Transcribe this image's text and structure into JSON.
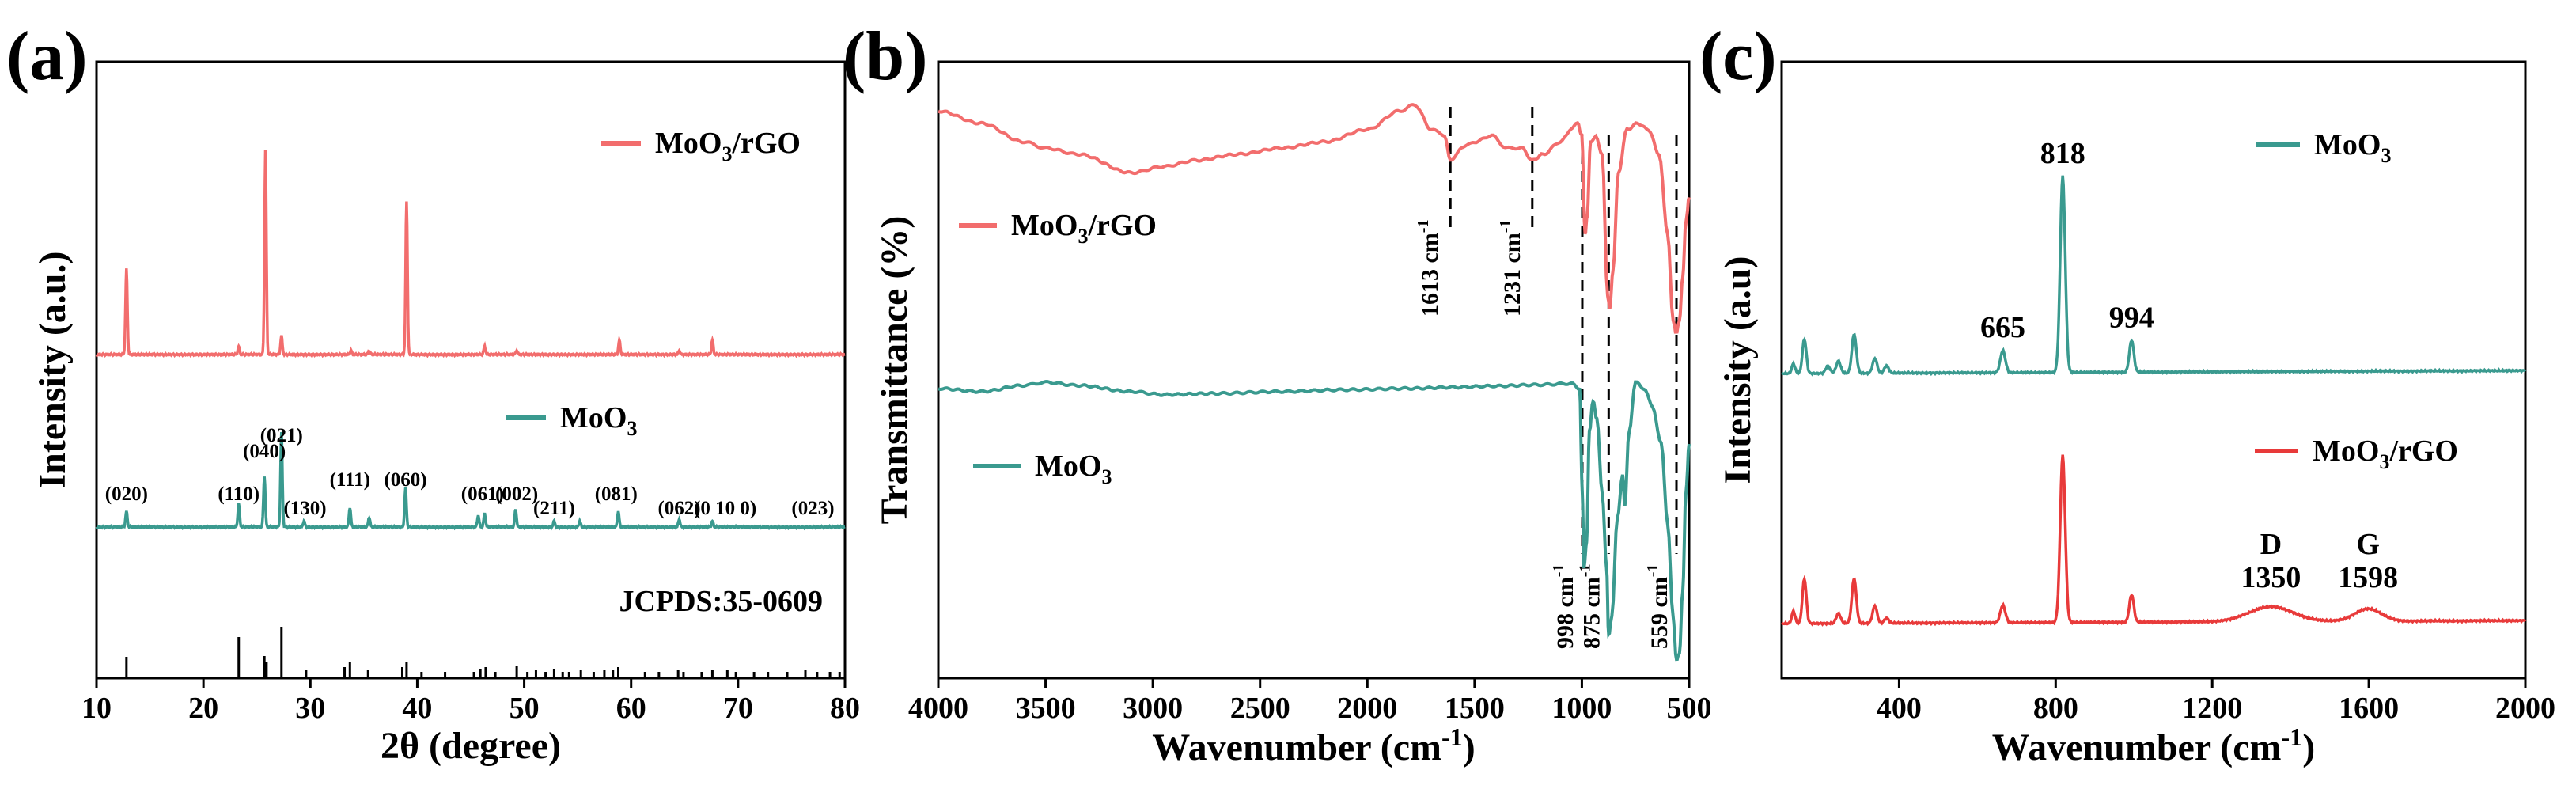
{
  "chart_data": [
    {
      "type": "line",
      "panel": "(a)",
      "xlabel": "2θ (degree)",
      "ylabel": "Intensity (a.u.)",
      "xlim": [
        10,
        80
      ],
      "xticks": [
        10,
        20,
        30,
        40,
        50,
        60,
        70,
        80
      ],
      "colors": {
        "MoO3/rGO": "#f26d6d",
        "MoO3": "#3a9a8f"
      },
      "series": [
        {
          "name": "MoO3/rGO",
          "label_main": "MoO",
          "label_sub": "3",
          "label_tail": "/rGO",
          "baseline": 1.0,
          "peaks": [
            {
              "x": 12.8,
              "h": 0.42
            },
            {
              "x": 23.3,
              "h": 0.04
            },
            {
              "x": 25.8,
              "h": 1.0
            },
            {
              "x": 27.3,
              "h": 0.09
            },
            {
              "x": 33.8,
              "h": 0.02
            },
            {
              "x": 35.5,
              "h": 0.02
            },
            {
              "x": 39.0,
              "h": 0.75
            },
            {
              "x": 46.3,
              "h": 0.04
            },
            {
              "x": 49.3,
              "h": 0.02
            },
            {
              "x": 58.9,
              "h": 0.07
            },
            {
              "x": 64.5,
              "h": 0.02
            },
            {
              "x": 67.6,
              "h": 0.07
            }
          ]
        },
        {
          "name": "MoO3",
          "label_main": "MoO",
          "label_sub": "3",
          "label_tail": "",
          "baseline": 0.0,
          "peaks": [
            {
              "x": 12.8,
              "h": 0.08
            },
            {
              "x": 23.3,
              "h": 0.12
            },
            {
              "x": 25.7,
              "h": 0.26
            },
            {
              "x": 27.3,
              "h": 0.48
            },
            {
              "x": 29.4,
              "h": 0.03
            },
            {
              "x": 33.7,
              "h": 0.1
            },
            {
              "x": 35.5,
              "h": 0.05
            },
            {
              "x": 38.9,
              "h": 0.2
            },
            {
              "x": 45.7,
              "h": 0.06
            },
            {
              "x": 46.3,
              "h": 0.07
            },
            {
              "x": 49.2,
              "h": 0.09
            },
            {
              "x": 52.8,
              "h": 0.03
            },
            {
              "x": 55.2,
              "h": 0.03
            },
            {
              "x": 58.8,
              "h": 0.08
            },
            {
              "x": 64.5,
              "h": 0.04
            },
            {
              "x": 67.6,
              "h": 0.03
            }
          ]
        }
      ],
      "hkl_labels": [
        {
          "text": "(020)",
          "x": 12.8,
          "row": 0
        },
        {
          "text": "(110)",
          "x": 23.3,
          "row": 0
        },
        {
          "text": "(040)",
          "x": 25.7,
          "row": 2
        },
        {
          "text": "(021)",
          "x": 27.3,
          "row": 3
        },
        {
          "text": "(130)",
          "x": 29.5,
          "row": -1
        },
        {
          "text": "(111)",
          "x": 33.7,
          "row": 1
        },
        {
          "text": "(060)",
          "x": 38.9,
          "row": 1
        },
        {
          "text": "(061)",
          "x": 46.1,
          "row": 0
        },
        {
          "text": "(002)",
          "x": 49.3,
          "row": 0
        },
        {
          "text": "(211)",
          "x": 52.8,
          "row": -1
        },
        {
          "text": "(081)",
          "x": 58.6,
          "row": 0
        },
        {
          "text": "(062)",
          "x": 64.5,
          "row": -1
        },
        {
          "text": "(0 10 0)",
          "x": 68.8,
          "row": -1
        },
        {
          "text": "(023)",
          "x": 77.0,
          "row": -1
        }
      ],
      "reference": {
        "label": "JCPDS:35-0609",
        "lines": [
          {
            "x": 12.8,
            "h": 0.27
          },
          {
            "x": 23.3,
            "h": 0.52
          },
          {
            "x": 25.7,
            "h": 0.28
          },
          {
            "x": 25.9,
            "h": 0.2
          },
          {
            "x": 27.3,
            "h": 0.65
          },
          {
            "x": 29.6,
            "h": 0.1
          },
          {
            "x": 33.2,
            "h": 0.14
          },
          {
            "x": 33.7,
            "h": 0.2
          },
          {
            "x": 35.4,
            "h": 0.1
          },
          {
            "x": 38.6,
            "h": 0.14
          },
          {
            "x": 39.0,
            "h": 0.2
          },
          {
            "x": 40.4,
            "h": 0.08
          },
          {
            "x": 42.6,
            "h": 0.08
          },
          {
            "x": 45.3,
            "h": 0.08
          },
          {
            "x": 45.9,
            "h": 0.12
          },
          {
            "x": 46.4,
            "h": 0.14
          },
          {
            "x": 47.3,
            "h": 0.08
          },
          {
            "x": 49.3,
            "h": 0.16
          },
          {
            "x": 50.3,
            "h": 0.08
          },
          {
            "x": 51.1,
            "h": 0.1
          },
          {
            "x": 52.0,
            "h": 0.08
          },
          {
            "x": 52.8,
            "h": 0.12
          },
          {
            "x": 53.6,
            "h": 0.08
          },
          {
            "x": 54.2,
            "h": 0.08
          },
          {
            "x": 55.3,
            "h": 0.1
          },
          {
            "x": 56.5,
            "h": 0.08
          },
          {
            "x": 57.5,
            "h": 0.1
          },
          {
            "x": 58.3,
            "h": 0.1
          },
          {
            "x": 58.8,
            "h": 0.14
          },
          {
            "x": 61.3,
            "h": 0.08
          },
          {
            "x": 62.6,
            "h": 0.08
          },
          {
            "x": 64.4,
            "h": 0.1
          },
          {
            "x": 64.9,
            "h": 0.08
          },
          {
            "x": 66.6,
            "h": 0.08
          },
          {
            "x": 67.6,
            "h": 0.1
          },
          {
            "x": 69.0,
            "h": 0.1
          },
          {
            "x": 69.8,
            "h": 0.08
          },
          {
            "x": 71.5,
            "h": 0.08
          },
          {
            "x": 72.8,
            "h": 0.08
          },
          {
            "x": 74.6,
            "h": 0.08
          },
          {
            "x": 76.3,
            "h": 0.1
          },
          {
            "x": 77.4,
            "h": 0.08
          },
          {
            "x": 78.6,
            "h": 0.08
          },
          {
            "x": 79.5,
            "h": 0.08
          }
        ]
      }
    },
    {
      "type": "line",
      "panel": "(b)",
      "xlabel_main": "Wavenumber (cm",
      "xlabel_sup": "-1",
      "xlabel_tail": ")",
      "ylabel": "Transmittance (%)",
      "xlim": [
        4000,
        500
      ],
      "xticks": [
        4000,
        3500,
        3000,
        2500,
        2000,
        1500,
        1000,
        500
      ],
      "colors": {
        "MoO3/rGO": "#f26d6d",
        "MoO3": "#3a9a8f"
      },
      "series": [
        {
          "name": "MoO3/rGO",
          "label_main": "MoO",
          "label_sub": "3",
          "label_tail": "/rGO",
          "points": [
            [
              4000,
              0.92
            ],
            [
              3800,
              0.9
            ],
            [
              3600,
              0.87
            ],
            [
              3500,
              0.86
            ],
            [
              3350,
              0.85
            ],
            [
              3100,
              0.82
            ],
            [
              2950,
              0.83
            ],
            [
              2800,
              0.84
            ],
            [
              2600,
              0.85
            ],
            [
              2400,
              0.86
            ],
            [
              2200,
              0.87
            ],
            [
              2000,
              0.89
            ],
            [
              1850,
              0.92
            ],
            [
              1780,
              0.93
            ],
            [
              1700,
              0.89
            ],
            [
              1640,
              0.88
            ],
            [
              1613,
              0.84
            ],
            [
              1560,
              0.86
            ],
            [
              1500,
              0.87
            ],
            [
              1420,
              0.88
            ],
            [
              1350,
              0.86
            ],
            [
              1280,
              0.86
            ],
            [
              1231,
              0.84
            ],
            [
              1180,
              0.85
            ],
            [
              1100,
              0.87
            ],
            [
              1050,
              0.89
            ],
            [
              1020,
              0.9
            ],
            [
              1000,
              0.88
            ],
            [
              985,
              0.72
            ],
            [
              975,
              0.75
            ],
            [
              960,
              0.87
            ],
            [
              935,
              0.88
            ],
            [
              905,
              0.85
            ],
            [
              880,
              0.62
            ],
            [
              870,
              0.6
            ],
            [
              855,
              0.66
            ],
            [
              830,
              0.82
            ],
            [
              790,
              0.89
            ],
            [
              740,
              0.9
            ],
            [
              690,
              0.89
            ],
            [
              640,
              0.85
            ],
            [
              600,
              0.72
            ],
            [
              575,
              0.58
            ],
            [
              560,
              0.56
            ],
            [
              545,
              0.58
            ],
            [
              530,
              0.65
            ],
            [
              515,
              0.74
            ],
            [
              500,
              0.78
            ]
          ]
        },
        {
          "name": "MoO3",
          "label_main": "MoO",
          "label_sub": "3",
          "label_tail": "",
          "points": [
            [
              4000,
              0.47
            ],
            [
              3800,
              0.465
            ],
            [
              3600,
              0.475
            ],
            [
              3500,
              0.48
            ],
            [
              3350,
              0.475
            ],
            [
              3100,
              0.465
            ],
            [
              2950,
              0.46
            ],
            [
              2700,
              0.462
            ],
            [
              2400,
              0.465
            ],
            [
              2100,
              0.468
            ],
            [
              1800,
              0.47
            ],
            [
              1600,
              0.472
            ],
            [
              1400,
              0.474
            ],
            [
              1200,
              0.476
            ],
            [
              1050,
              0.478
            ],
            [
              1010,
              0.47
            ],
            [
              998,
              0.3
            ],
            [
              990,
              0.18
            ],
            [
              978,
              0.22
            ],
            [
              965,
              0.4
            ],
            [
              948,
              0.45
            ],
            [
              930,
              0.42
            ],
            [
              905,
              0.3
            ],
            [
              885,
              0.18
            ],
            [
              875,
              0.07
            ],
            [
              860,
              0.1
            ],
            [
              835,
              0.26
            ],
            [
              810,
              0.33
            ],
            [
              800,
              0.28
            ],
            [
              780,
              0.4
            ],
            [
              750,
              0.48
            ],
            [
              710,
              0.47
            ],
            [
              670,
              0.44
            ],
            [
              630,
              0.38
            ],
            [
              600,
              0.25
            ],
            [
              575,
              0.1
            ],
            [
              559,
              0.03
            ],
            [
              545,
              0.04
            ],
            [
              530,
              0.14
            ],
            [
              515,
              0.3
            ],
            [
              500,
              0.38
            ]
          ]
        }
      ],
      "markers": [
        {
          "x": 1613,
          "label": "1613 cm",
          "sup": "-1",
          "pos": "top"
        },
        {
          "x": 1231,
          "label": "1231 cm",
          "sup": "-1",
          "pos": "top"
        },
        {
          "x": 998,
          "label": "998 cm",
          "sup": "-1",
          "pos": "bottom"
        },
        {
          "x": 875,
          "label": "875 cm",
          "sup": "-1",
          "pos": "bottom"
        },
        {
          "x": 559,
          "label": "559 cm",
          "sup": "-1",
          "pos": "bottom"
        }
      ]
    },
    {
      "type": "line",
      "panel": "(c)",
      "xlabel_main": "Wavenumber (cm",
      "xlabel_sup": "-1",
      "xlabel_tail": ")",
      "ylabel": "Intensity (a.u)",
      "xlim": [
        100,
        2000
      ],
      "xticks": [
        400,
        800,
        1200,
        1600,
        2000
      ],
      "colors": {
        "MoO3": "#3a9a8f",
        "MoO3/rGO": "#e83a3a"
      },
      "series": [
        {
          "name": "MoO3",
          "label_main": "MoO",
          "label_sub": "3",
          "label_tail": "",
          "baseline": 1.0,
          "peaks": [
            {
              "x": 130,
              "w": 6,
              "h": 0.04
            },
            {
              "x": 158,
              "w": 7,
              "h": 0.14
            },
            {
              "x": 218,
              "w": 8,
              "h": 0.03
            },
            {
              "x": 245,
              "w": 8,
              "h": 0.05
            },
            {
              "x": 285,
              "w": 8,
              "h": 0.16
            },
            {
              "x": 338,
              "w": 8,
              "h": 0.06
            },
            {
              "x": 368,
              "w": 8,
              "h": 0.03
            },
            {
              "x": 665,
              "w": 9,
              "h": 0.09
            },
            {
              "x": 818,
              "w": 9,
              "h": 0.8
            },
            {
              "x": 994,
              "w": 8,
              "h": 0.13
            }
          ]
        },
        {
          "name": "MoO3/rGO",
          "label_main": "MoO",
          "label_sub": "3",
          "label_tail": "/rGO",
          "baseline": 0.0,
          "peaks": [
            {
              "x": 130,
              "w": 6,
              "h": 0.05
            },
            {
              "x": 158,
              "w": 7,
              "h": 0.18
            },
            {
              "x": 245,
              "w": 8,
              "h": 0.04
            },
            {
              "x": 285,
              "w": 8,
              "h": 0.18
            },
            {
              "x": 338,
              "w": 8,
              "h": 0.07
            },
            {
              "x": 368,
              "w": 8,
              "h": 0.02
            },
            {
              "x": 665,
              "w": 9,
              "h": 0.07
            },
            {
              "x": 818,
              "w": 9,
              "h": 0.67
            },
            {
              "x": 994,
              "w": 8,
              "h": 0.11
            },
            {
              "x": 1350,
              "w": 80,
              "h": 0.06
            },
            {
              "x": 1598,
              "w": 48,
              "h": 0.05
            }
          ]
        }
      ],
      "peak_labels": [
        {
          "text": "665",
          "x": 665,
          "series": 0
        },
        {
          "text": "818",
          "x": 818,
          "series": 0
        },
        {
          "text": "994",
          "x": 994,
          "series": 0
        },
        {
          "text": "D",
          "x": 1350,
          "series": 1,
          "line": 0
        },
        {
          "text": "1350",
          "x": 1350,
          "series": 1,
          "line": 1
        },
        {
          "text": "G",
          "x": 1598,
          "series": 1,
          "line": 0
        },
        {
          "text": "1598",
          "x": 1598,
          "series": 1,
          "line": 1
        }
      ]
    }
  ]
}
